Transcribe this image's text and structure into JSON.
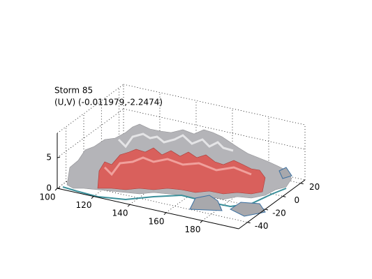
{
  "chart_data": {
    "type": "isosurface3d",
    "title": "Storm 85",
    "subtitle": "(U,V) (-0.011979,-2.2474)",
    "xlim": [
      100,
      200
    ],
    "xticks": [
      100,
      120,
      140,
      160,
      180
    ],
    "ylim": [
      -50,
      25
    ],
    "yticks": [
      -40,
      -20,
      0,
      20
    ],
    "zlim": [
      0,
      9
    ],
    "zticks": [
      0,
      5
    ],
    "grid": true
  }
}
